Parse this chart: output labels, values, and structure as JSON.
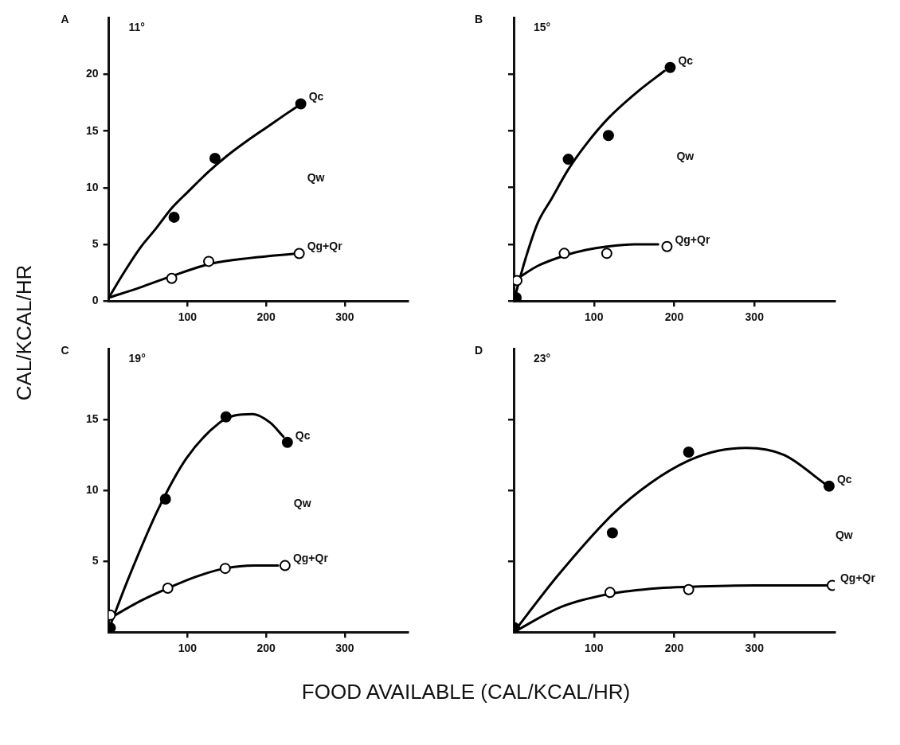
{
  "chart_data": [
    {
      "type": "scatter",
      "title": "A",
      "subtitle": "11°",
      "ylabel": "CAL/KCAL/HR",
      "annotations": [
        "Qw"
      ],
      "xlim": [
        0,
        380
      ],
      "ylim": [
        0,
        25
      ],
      "xticks": [
        100,
        200,
        300
      ],
      "yticks": [
        0,
        5,
        10,
        15,
        20
      ],
      "series": [
        {
          "name": "Qc",
          "type": "scatter",
          "marker": "circle",
          "color": "#000000",
          "x": [
            83,
            135,
            244
          ],
          "values": [
            7.4,
            12.6,
            17.4
          ]
        },
        {
          "name": "Qg+Qr",
          "type": "scatter",
          "marker": "circle",
          "color": "#000000",
          "x": [
            80,
            127,
            242
          ],
          "values": [
            2.0,
            3.5,
            4.2
          ]
        },
        {
          "type": "line",
          "marker": "none",
          "color": "#000000",
          "x": [
            0,
            20,
            40,
            60,
            80,
            100,
            125,
            150,
            175,
            200,
            225,
            240
          ],
          "values": [
            0.3,
            2.6,
            4.7,
            6.4,
            8.2,
            9.6,
            11.3,
            12.8,
            14.1,
            15.3,
            16.5,
            17.2
          ]
        },
        {
          "type": "line",
          "marker": "none",
          "color": "#000000",
          "x": [
            0,
            40,
            80,
            130,
            180,
            240
          ],
          "values": [
            0.3,
            1.2,
            2.2,
            3.3,
            3.8,
            4.2
          ]
        }
      ]
    },
    {
      "type": "scatter",
      "title": "B",
      "subtitle": "15°",
      "annotations": [
        "Qw"
      ],
      "xlim": [
        0,
        400
      ],
      "ylim": [
        0,
        25
      ],
      "xticks": [
        100,
        200,
        300
      ],
      "yticks": [
        0,
        5,
        10,
        15,
        20
      ],
      "tick_labels": "x",
      "series": [
        {
          "name": "Qc",
          "type": "scatter",
          "marker": "circle",
          "color": "#000000",
          "x": [
            3,
            68,
            118,
            195
          ],
          "values": [
            0.3,
            12.5,
            14.6,
            20.6
          ]
        },
        {
          "name": "Qg+Qr",
          "type": "scatter",
          "marker": "circle",
          "color": "#000000",
          "x": [
            4,
            63,
            116,
            191
          ],
          "values": [
            1.8,
            4.2,
            4.2,
            4.8
          ]
        },
        {
          "type": "line",
          "marker": "none",
          "color": "#000000",
          "x": [
            0,
            15,
            30,
            47,
            68,
            90,
            119,
            155,
            188
          ],
          "values": [
            0,
            3.8,
            6.9,
            9.0,
            11.6,
            13.8,
            16.2,
            18.5,
            20.3
          ]
        },
        {
          "type": "line",
          "marker": "none",
          "color": "#000000",
          "x": [
            5,
            30,
            63,
            90,
            116,
            150,
            180
          ],
          "values": [
            2.0,
            3.1,
            4.0,
            4.5,
            4.8,
            5.0,
            5.0
          ]
        }
      ]
    },
    {
      "type": "scatter",
      "title": "C",
      "subtitle": "19°",
      "xlabel": "FOOD AVAILABLE (CAL/KCAL/HR)",
      "annotations": [
        "Qw"
      ],
      "xlim": [
        0,
        380
      ],
      "ylim": [
        0,
        20
      ],
      "xticks": [
        100,
        200,
        300
      ],
      "yticks": [
        5,
        10,
        15
      ],
      "series": [
        {
          "name": "Qc",
          "type": "scatter",
          "marker": "circle",
          "color": "#000000",
          "x": [
            2,
            72,
            149,
            227
          ],
          "values": [
            0.3,
            9.4,
            15.2,
            13.4
          ]
        },
        {
          "name": "Qg+Qr",
          "type": "scatter",
          "marker": "circle",
          "color": "#000000",
          "x": [
            2,
            75,
            148,
            224
          ],
          "values": [
            1.2,
            3.1,
            4.5,
            4.7
          ]
        },
        {
          "type": "line",
          "marker": "none",
          "color": "#000000",
          "x": [
            2,
            25,
            63,
            99,
            141,
            160,
            183,
            205,
            222
          ],
          "values": [
            0.5,
            3.8,
            8.7,
            12.3,
            14.8,
            15.3,
            15.4,
            14.8,
            13.8
          ]
        },
        {
          "type": "line",
          "marker": "none",
          "color": "#000000",
          "x": [
            2,
            40,
            75,
            110,
            148,
            185,
            215
          ],
          "values": [
            1.0,
            2.2,
            3.1,
            3.9,
            4.5,
            4.7,
            4.7
          ]
        }
      ]
    },
    {
      "type": "scatter",
      "title": "D",
      "subtitle": "23°",
      "annotations": [
        "Qw"
      ],
      "xlim": [
        0,
        400
      ],
      "ylim": [
        0,
        20
      ],
      "xticks": [
        100,
        200,
        300
      ],
      "yticks": [
        5,
        10,
        15
      ],
      "tick_labels": "x",
      "series": [
        {
          "name": "Qc",
          "type": "scatter",
          "marker": "circle",
          "color": "#000000",
          "x": [
            1,
            123,
            218,
            393
          ],
          "values": [
            0.3,
            7.0,
            12.7,
            10.3
          ]
        },
        {
          "name": "Qg+Qr",
          "type": "scatter",
          "marker": "circle",
          "color": "#000000",
          "x": [
            120,
            218,
            397
          ],
          "values": [
            2.8,
            3.0,
            3.3
          ]
        },
        {
          "type": "line",
          "marker": "none",
          "color": "#000000",
          "x": [
            0,
            55,
            123,
            170,
            218,
            255,
            290,
            337,
            387
          ],
          "values": [
            0,
            4.0,
            8.3,
            10.5,
            12.1,
            12.8,
            13.0,
            12.5,
            10.5
          ]
        },
        {
          "type": "line",
          "marker": "none",
          "color": "#000000",
          "x": [
            0,
            60,
            120,
            180,
            220,
            300,
            390
          ],
          "values": [
            0,
            1.8,
            2.7,
            3.1,
            3.2,
            3.3,
            3.3
          ]
        }
      ]
    }
  ]
}
